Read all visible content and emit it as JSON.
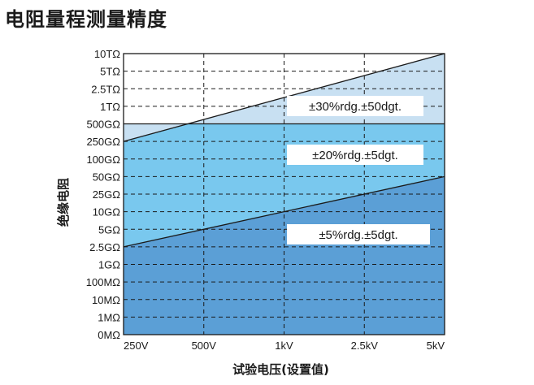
{
  "page": {
    "title": "电阻量程测量精度"
  },
  "chart_data": {
    "type": "area",
    "title": "电阻量程测量精度",
    "xlabel": "试验电压(设置值)",
    "ylabel": "绝缘电阻",
    "x_categories": [
      "250V",
      "500V",
      "1kV",
      "2.5kV",
      "5kV"
    ],
    "y_categories": [
      "0MΩ",
      "1MΩ",
      "10MΩ",
      "100MΩ",
      "1GΩ",
      "2.5GΩ",
      "5GΩ",
      "10GΩ",
      "25GΩ",
      "50GΩ",
      "100GΩ",
      "250GΩ",
      "500GΩ",
      "1TΩ",
      "2.5TΩ",
      "5TΩ",
      "10TΩ"
    ],
    "grid": true,
    "boundaries": [
      {
        "from": [
          "250V",
          "2.5GΩ"
        ],
        "to": [
          "5kV",
          "50GΩ"
        ]
      },
      {
        "from": [
          "250V",
          "500GΩ"
        ],
        "to": [
          "5kV",
          "500GΩ"
        ]
      },
      {
        "from": [
          "250V",
          "250GΩ"
        ],
        "to": [
          "5kV",
          "10TΩ"
        ]
      }
    ],
    "regions": [
      {
        "label": "±5%rdg.±5dgt.",
        "color": "#5b9fd6"
      },
      {
        "label": "±20%rdg.±5dgt.",
        "color": "#79c8ee"
      },
      {
        "label": "±30%rdg.±50dgt.",
        "color": "#c8e0f2"
      }
    ]
  }
}
